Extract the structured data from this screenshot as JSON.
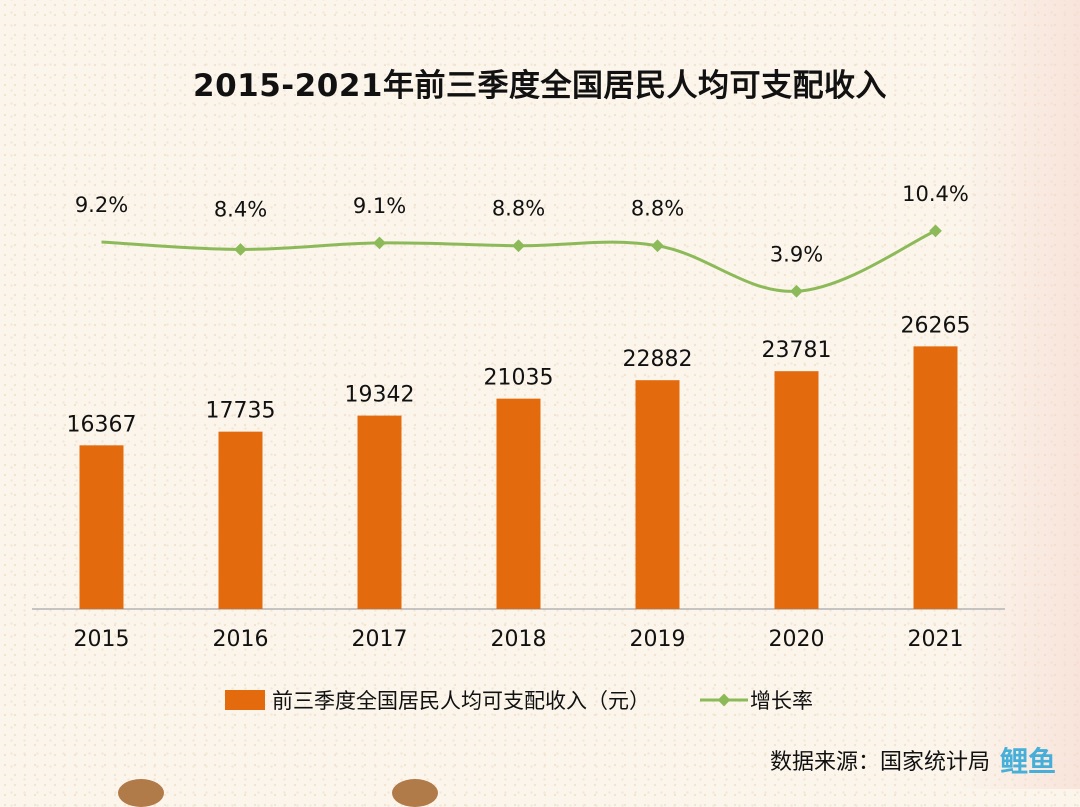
{
  "title": "2015-2021年前三季度全国居民人均可支配收入",
  "source": "数据来源：国家统计局",
  "watermark": "鲤鱼",
  "colors": {
    "bar": "#e36b0d",
    "line": "#8cba58",
    "axis": "#b3b3b3",
    "text": "#111111"
  },
  "chart_data": {
    "type": "bar",
    "categories": [
      "2015",
      "2016",
      "2017",
      "2018",
      "2019",
      "2020",
      "2021"
    ],
    "series": [
      {
        "name": "前三季度全国居民人均可支配收入（元）",
        "type": "bar",
        "values": [
          16367,
          17735,
          19342,
          21035,
          22882,
          23781,
          26265
        ],
        "labels": [
          "16367",
          "17735",
          "19342",
          "21035",
          "22882",
          "23781",
          "26265"
        ]
      },
      {
        "name": "增长率",
        "type": "line",
        "values": [
          9.2,
          8.4,
          9.1,
          8.8,
          8.8,
          3.9,
          10.4
        ],
        "labels": [
          "9.2%",
          "8.4%",
          "9.1%",
          "8.8%",
          "8.8%",
          "3.9%",
          "10.4%"
        ]
      }
    ],
    "legend_position": "bottom",
    "grid": false
  }
}
